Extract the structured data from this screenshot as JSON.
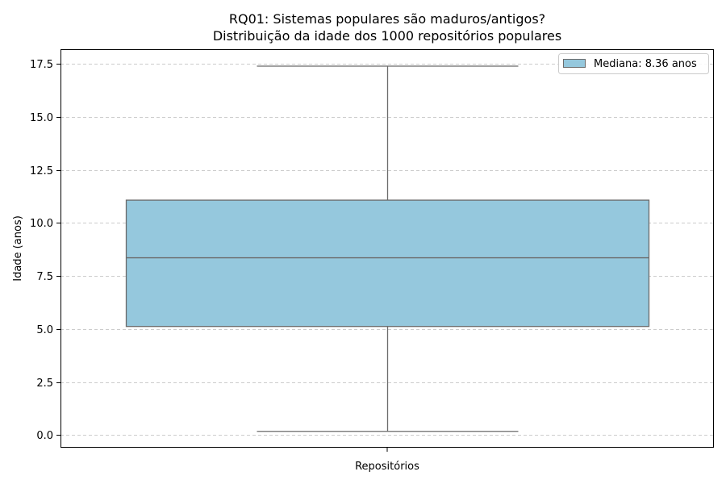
{
  "chart_data": {
    "type": "box",
    "title_line1": "RQ01: Sistemas populares são maduros/antigos?",
    "title_line2": "Distribuição da idade dos 1000 repositórios populares",
    "xlabel": "Repositórios",
    "ylabel": "Idade (anos)",
    "ylim": [
      -0.6,
      18.2
    ],
    "yticks": [
      0.0,
      2.5,
      5.0,
      7.5,
      10.0,
      12.5,
      15.0,
      17.5
    ],
    "ytick_labels": [
      "0.0",
      "2.5",
      "5.0",
      "7.5",
      "10.0",
      "12.5",
      "15.0",
      "17.5"
    ],
    "grid": "y-dashed",
    "legend": {
      "position": "top-right",
      "label": "Mediana: 8.36 anos"
    },
    "box": {
      "whisker_low": 0.17,
      "q1": 5.12,
      "median": 8.36,
      "q3": 11.08,
      "whisker_high": 17.4,
      "fill": "#95c8dd",
      "stroke": "#6b6b6b"
    }
  }
}
